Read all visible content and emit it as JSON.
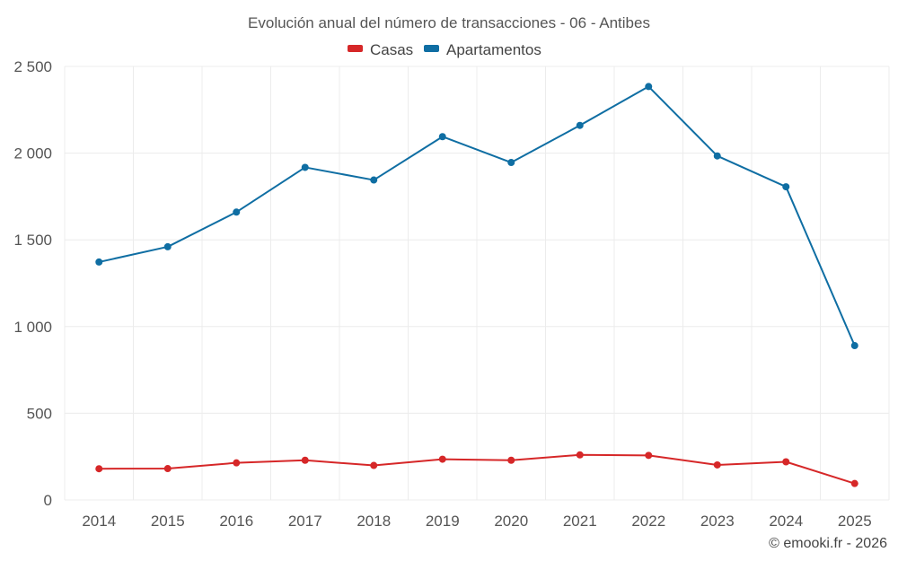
{
  "chart_data": {
    "type": "line",
    "title": "Evolución anual del número de transacciones - 06 - Antibes",
    "categories": [
      "2014",
      "2015",
      "2016",
      "2017",
      "2018",
      "2019",
      "2020",
      "2021",
      "2022",
      "2023",
      "2024",
      "2025"
    ],
    "series": [
      {
        "name": "Casas",
        "color": "#d62728",
        "values": [
          180,
          181,
          214,
          229,
          199,
          235,
          229,
          260,
          257,
          202,
          220,
          95
        ]
      },
      {
        "name": "Apartamentos",
        "color": "#0f6ea3",
        "values": [
          1372,
          1460,
          1660,
          1918,
          1845,
          2095,
          1946,
          2160,
          2384,
          1984,
          1806,
          890
        ]
      }
    ],
    "ylim": [
      0,
      2500
    ],
    "yticks": [
      0,
      500,
      1000,
      1500,
      2000,
      2500
    ],
    "ytick_labels": [
      "0",
      "500",
      "1 000",
      "1 500",
      "2 000",
      "2 500"
    ],
    "grid": true,
    "legend_position": "top-center",
    "xlabel": "",
    "ylabel": ""
  },
  "credit": "© emooki.fr - 2026"
}
